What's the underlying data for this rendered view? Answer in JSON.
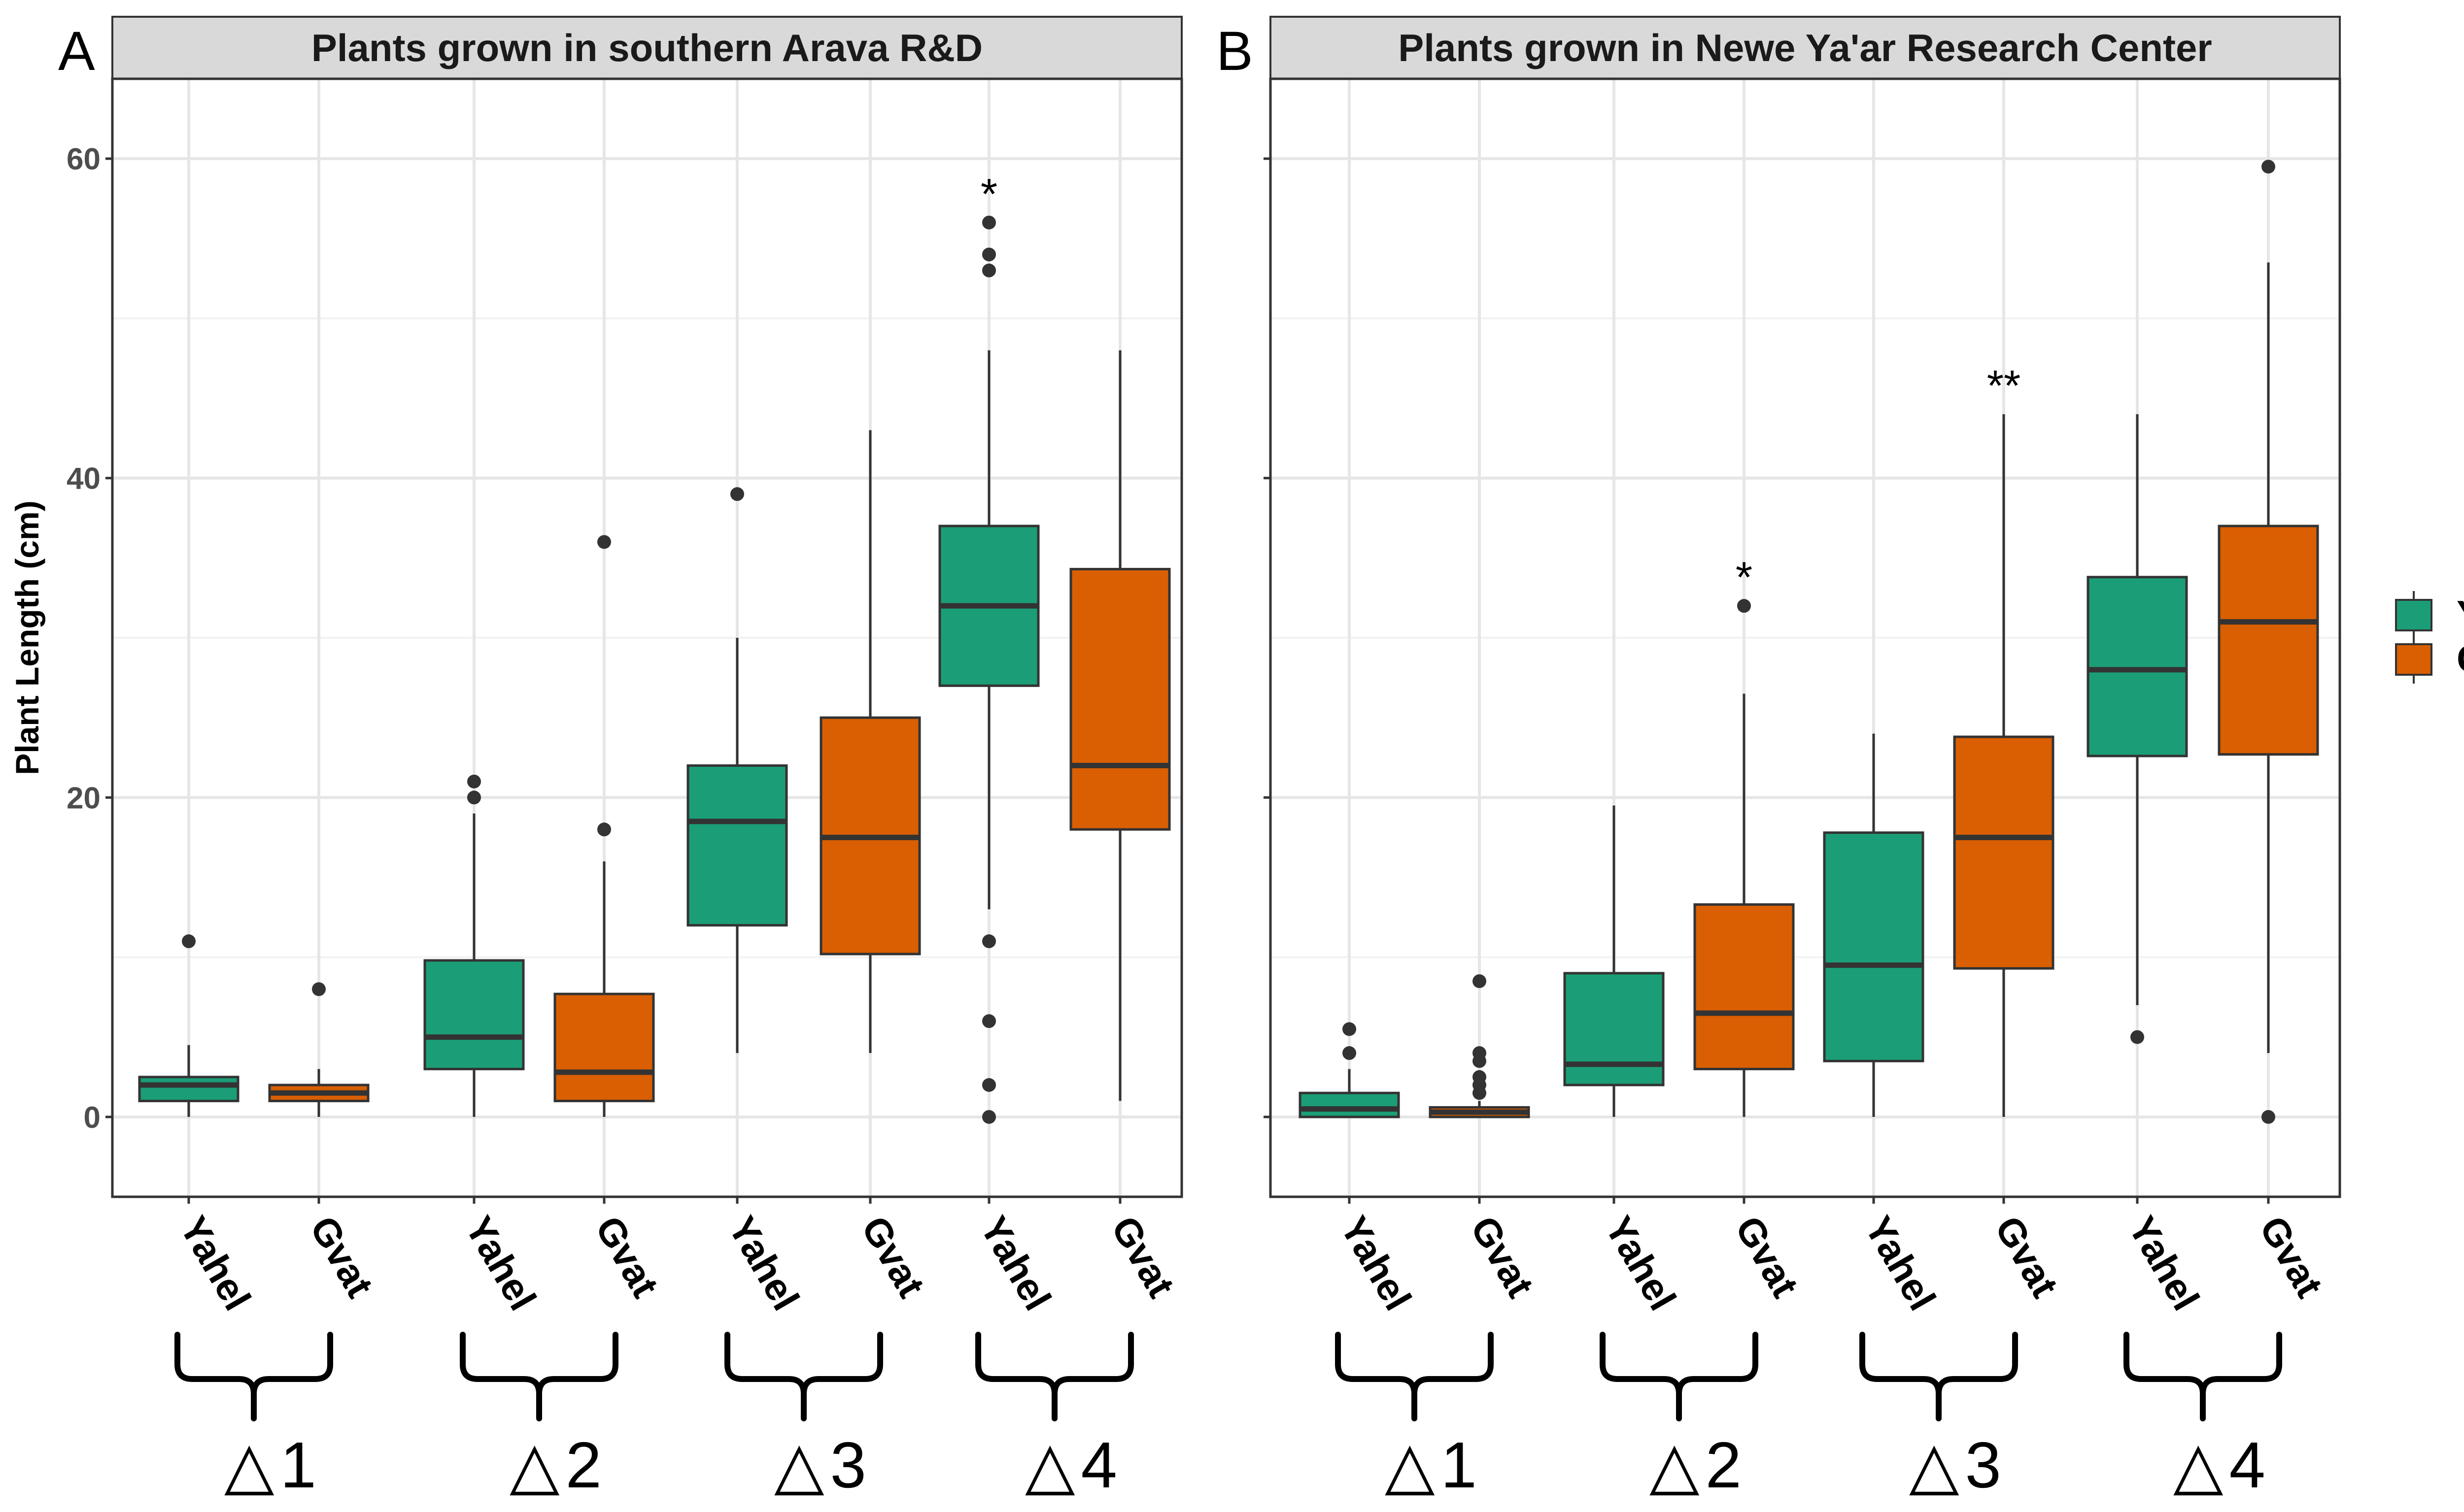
{
  "chart_data": {
    "type": "box",
    "ylabel": "Plant Length (cm)",
    "ylim": [
      -5,
      65
    ],
    "yticks": [
      0,
      20,
      40,
      60
    ],
    "grid": true,
    "legend": {
      "placement": "right",
      "entries": [
        {
          "name": "Yahel",
          "color": "#1b9e77"
        },
        {
          "name": "Gvat",
          "color": "#d95f02"
        }
      ]
    },
    "panels": [
      {
        "label": "A",
        "title": "Plants grown in southern Arava R&D",
        "groups": [
          {
            "name": "1",
            "symbol": "△"
          },
          {
            "name": "2",
            "symbol": "△"
          },
          {
            "name": "3",
            "symbol": "△"
          },
          {
            "name": "4",
            "symbol": "△"
          }
        ],
        "boxes": [
          {
            "category": "Yahel",
            "group": 0,
            "series": "Yahel",
            "min": 0,
            "q1": 1,
            "median": 2,
            "q3": 2.5,
            "max": 4.5,
            "outliers": [
              11
            ],
            "sig": ""
          },
          {
            "category": "Gvat",
            "group": 0,
            "series": "Gvat",
            "min": 0,
            "q1": 1,
            "median": 1.5,
            "q3": 2,
            "max": 3,
            "outliers": [
              8
            ],
            "sig": ""
          },
          {
            "category": "Yahel",
            "group": 1,
            "series": "Yahel",
            "min": 0,
            "q1": 3,
            "median": 5,
            "q3": 9.8,
            "max": 19,
            "outliers": [
              20,
              21
            ],
            "sig": ""
          },
          {
            "category": "Gvat",
            "group": 1,
            "series": "Gvat",
            "min": 0,
            "q1": 1,
            "median": 2.8,
            "q3": 7.7,
            "max": 16,
            "outliers": [
              18,
              36
            ],
            "sig": ""
          },
          {
            "category": "Yahel",
            "group": 2,
            "series": "Yahel",
            "min": 4,
            "q1": 12,
            "median": 18.5,
            "q3": 22,
            "max": 30,
            "outliers": [
              39
            ],
            "sig": ""
          },
          {
            "category": "Gvat",
            "group": 2,
            "series": "Gvat",
            "min": 4,
            "q1": 10.2,
            "median": 17.5,
            "q3": 25,
            "max": 43,
            "outliers": [],
            "sig": ""
          },
          {
            "category": "Yahel",
            "group": 3,
            "series": "Yahel",
            "min": 13,
            "q1": 27,
            "median": 32,
            "q3": 37,
            "max": 48,
            "outliers": [
              0,
              2,
              6,
              11,
              53,
              54,
              56
            ],
            "sig": "*"
          },
          {
            "category": "Gvat",
            "group": 3,
            "series": "Gvat",
            "min": 1,
            "q1": 18,
            "median": 22,
            "q3": 34.3,
            "max": 48,
            "outliers": [],
            "sig": ""
          }
        ]
      },
      {
        "label": "B",
        "title": "Plants grown in Newe Ya'ar Research Center",
        "groups": [
          {
            "name": "1",
            "symbol": "△"
          },
          {
            "name": "2",
            "symbol": "△"
          },
          {
            "name": "3",
            "symbol": "△"
          },
          {
            "name": "4",
            "symbol": "△"
          }
        ],
        "boxes": [
          {
            "category": "Yahel",
            "group": 0,
            "series": "Yahel",
            "min": 0,
            "q1": 0,
            "median": 0.5,
            "q3": 1.5,
            "max": 3,
            "outliers": [
              4,
              5.5
            ],
            "sig": ""
          },
          {
            "category": "Gvat",
            "group": 0,
            "series": "Gvat",
            "min": 0,
            "q1": 0,
            "median": 0.3,
            "q3": 0.6,
            "max": 1,
            "outliers": [
              1.5,
              2,
              2.5,
              3.5,
              4,
              8.5
            ],
            "sig": ""
          },
          {
            "category": "Yahel",
            "group": 1,
            "series": "Yahel",
            "min": 0,
            "q1": 2,
            "median": 3.3,
            "q3": 9,
            "max": 19.5,
            "outliers": [],
            "sig": ""
          },
          {
            "category": "Gvat",
            "group": 1,
            "series": "Gvat",
            "min": 0,
            "q1": 3,
            "median": 6.5,
            "q3": 13.3,
            "max": 26.5,
            "outliers": [
              32
            ],
            "sig": "*"
          },
          {
            "category": "Yahel",
            "group": 2,
            "series": "Yahel",
            "min": 0,
            "q1": 3.5,
            "median": 9.5,
            "q3": 17.8,
            "max": 24,
            "outliers": [],
            "sig": ""
          },
          {
            "category": "Gvat",
            "group": 2,
            "series": "Gvat",
            "min": 0,
            "q1": 9.3,
            "median": 17.5,
            "q3": 23.8,
            "max": 44,
            "outliers": [],
            "sig": "**"
          },
          {
            "category": "Yahel",
            "group": 3,
            "series": "Yahel",
            "min": 7,
            "q1": 22.6,
            "median": 28,
            "q3": 33.8,
            "max": 44,
            "outliers": [
              5
            ],
            "sig": ""
          },
          {
            "category": "Gvat",
            "group": 3,
            "series": "Gvat",
            "min": 4,
            "q1": 22.7,
            "median": 31,
            "q3": 37,
            "max": 53.5,
            "outliers": [
              0,
              59.5
            ],
            "sig": ""
          }
        ]
      }
    ]
  }
}
